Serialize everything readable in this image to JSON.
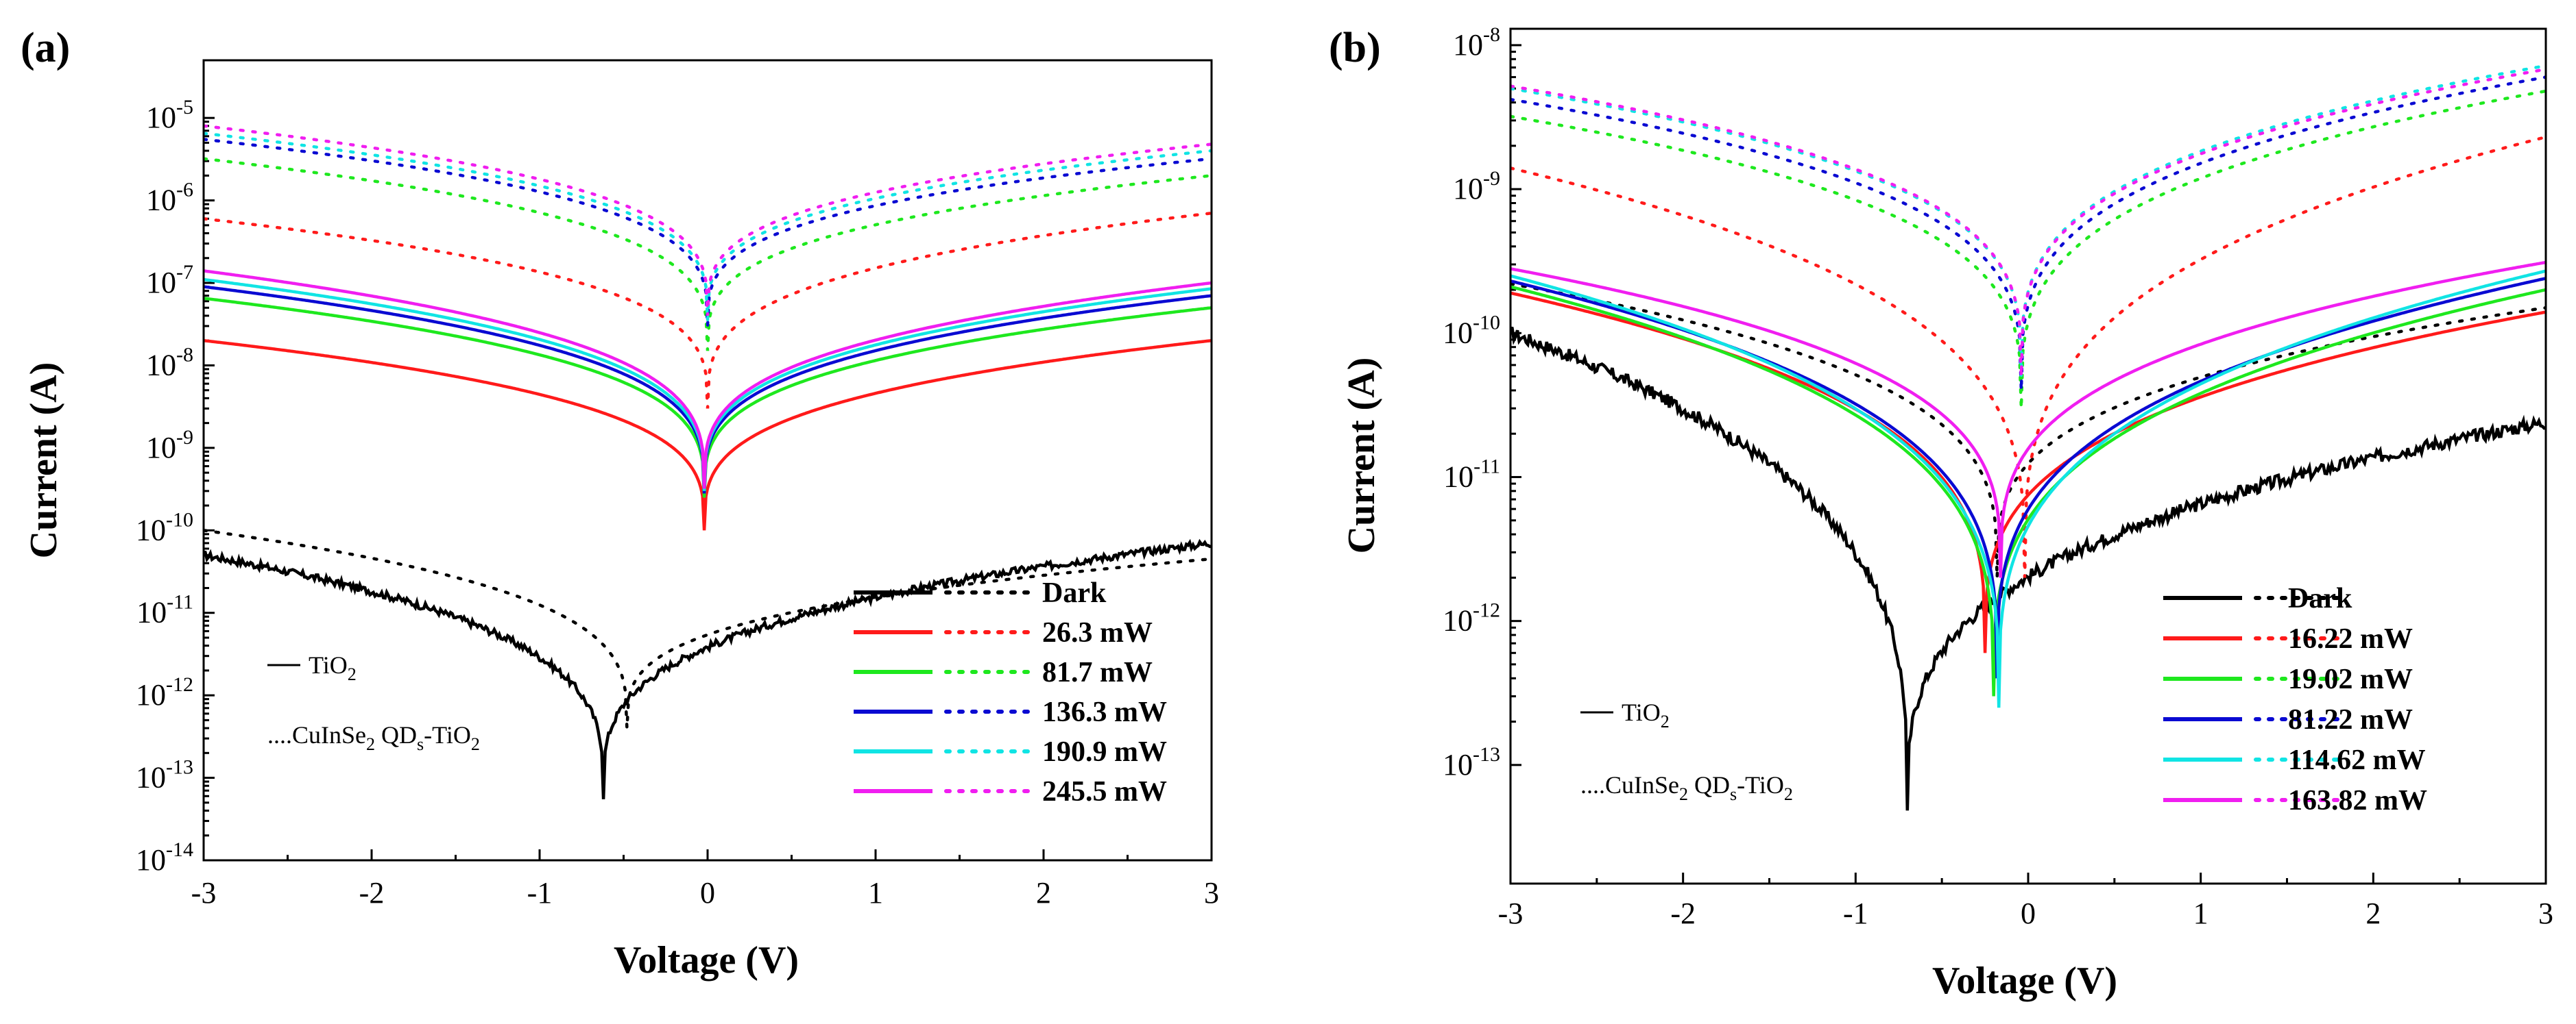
{
  "chart_data": [
    {
      "type": "line",
      "panel_label": "(a)",
      "xlabel": "Voltage (V)",
      "ylabel": "Current (A)",
      "xscale": "linear",
      "yscale": "log",
      "xlim": [
        -3,
        3
      ],
      "ylim": [
        1e-14,
        5e-05
      ],
      "x_ticks": [
        -3,
        -2,
        -1,
        0,
        1,
        2,
        3
      ],
      "x_tick_labels": [
        "-3",
        "-2",
        "-1",
        "0",
        "1",
        "2",
        "3"
      ],
      "y_tick_exponents": [
        -14,
        -13,
        -12,
        -11,
        -10,
        -9,
        -8,
        -7,
        -6,
        -5
      ],
      "legend_position": "bottom-right",
      "annotations": {
        "solid_label": "TiO",
        "solid_sub": "2",
        "dotted_prefix": "....CuInSe",
        "dotted_sub1": "2",
        "dotted_mid": " QD",
        "dotted_sub2": "s",
        "dotted_suffix": "-TiO",
        "dotted_sub3": "2"
      },
      "series": [
        {
          "name": "Dark",
          "color": "#000000",
          "solid": {
            "v3n": 5e-11,
            "v3p": 7e-11,
            "vmin": -0.62,
            "min": 6e-14
          },
          "dotted": {
            "v3n": 1e-10,
            "v3p": 4.5e-11,
            "vmin": -0.48,
            "min": 4e-13
          }
        },
        {
          "name": "26.3 mW",
          "color": "#ff1a1a",
          "solid": {
            "v3n": 2e-08,
            "v3p": 2e-08,
            "vmin": -0.02,
            "min": 1e-10
          },
          "dotted": {
            "v3n": 6e-07,
            "v3p": 7e-07,
            "vmin": 0,
            "min": 3e-09
          }
        },
        {
          "name": "81.7 mW",
          "color": "#1ee81e",
          "solid": {
            "v3n": 6.5e-08,
            "v3p": 5e-08,
            "vmin": -0.02,
            "min": 2.5e-10
          },
          "dotted": {
            "v3n": 3.2e-06,
            "v3p": 2e-06,
            "vmin": 0,
            "min": 1.5e-08
          }
        },
        {
          "name": "136.3 mW",
          "color": "#0a0ad2",
          "solid": {
            "v3n": 9e-08,
            "v3p": 7e-08,
            "vmin": -0.02,
            "min": 2.8e-10
          },
          "dotted": {
            "v3n": 5.5e-06,
            "v3p": 3.2e-06,
            "vmin": 0,
            "min": 3e-08
          }
        },
        {
          "name": "190.9 mW",
          "color": "#10e4e4",
          "solid": {
            "v3n": 1.1e-07,
            "v3p": 8.5e-08,
            "vmin": -0.02,
            "min": 3e-10
          },
          "dotted": {
            "v3n": 6.5e-06,
            "v3p": 4e-06,
            "vmin": 0,
            "min": 3.5e-08
          }
        },
        {
          "name": "245.5 mW",
          "color": "#f01ef0",
          "solid": {
            "v3n": 1.4e-07,
            "v3p": 1e-07,
            "vmin": -0.02,
            "min": 3.2e-10
          },
          "dotted": {
            "v3n": 8e-06,
            "v3p": 4.8e-06,
            "vmin": 0,
            "min": 4e-08
          }
        }
      ]
    },
    {
      "type": "line",
      "panel_label": "(b)",
      "xlabel": "Voltage (V)",
      "ylabel": "Current (A)",
      "xscale": "linear",
      "yscale": "log",
      "xlim": [
        -3,
        3
      ],
      "ylim": [
        1.5e-14,
        1.3e-08
      ],
      "x_ticks": [
        -3,
        -2,
        -1,
        0,
        1,
        2,
        3
      ],
      "x_tick_labels": [
        "-3",
        "-2",
        "-1",
        "0",
        "1",
        "2",
        "3"
      ],
      "y_tick_exponents": [
        -13,
        -12,
        -11,
        -10,
        -9,
        -8
      ],
      "legend_position": "bottom-right",
      "annotations": {
        "solid_label": "TiO",
        "solid_sub": "2",
        "dotted_prefix": "....CuInSe",
        "dotted_sub1": "2",
        "dotted_mid": " QD",
        "dotted_sub2": "s",
        "dotted_suffix": "-TiO",
        "dotted_sub3": "2"
      },
      "series": [
        {
          "name": "Dark",
          "color": "#000000",
          "solid": {
            "v3n": 1e-10,
            "v3p": 2.4e-11,
            "vmin": -0.7,
            "min": 4.5e-14
          },
          "dotted": {
            "v3n": 2.2e-10,
            "v3p": 1.5e-10,
            "vmin": -0.18,
            "min": 2e-12
          }
        },
        {
          "name": "16.22 mW",
          "color": "#ff1a1a",
          "solid": {
            "v3n": 1.9e-10,
            "v3p": 1.4e-10,
            "vmin": -0.25,
            "min": 6e-13
          },
          "dotted": {
            "v3n": 1.4e-09,
            "v3p": 2.3e-09,
            "vmin": -0.02,
            "min": 2e-12
          }
        },
        {
          "name": "19.02 mW",
          "color": "#1ee81e",
          "solid": {
            "v3n": 2.1e-10,
            "v3p": 2e-10,
            "vmin": -0.2,
            "min": 3e-13
          },
          "dotted": {
            "v3n": 3.2e-09,
            "v3p": 4.8e-09,
            "vmin": -0.04,
            "min": 3e-11
          }
        },
        {
          "name": "81.22 mW",
          "color": "#0a0ad2",
          "solid": {
            "v3n": 2.3e-10,
            "v3p": 2.4e-10,
            "vmin": -0.18,
            "min": 4e-13
          },
          "dotted": {
            "v3n": 4.2e-09,
            "v3p": 6e-09,
            "vmin": -0.04,
            "min": 4e-11
          }
        },
        {
          "name": "114.62 mW",
          "color": "#10e4e4",
          "solid": {
            "v3n": 2.5e-10,
            "v3p": 2.7e-10,
            "vmin": -0.17,
            "min": 2.5e-13
          },
          "dotted": {
            "v3n": 5e-09,
            "v3p": 7.2e-09,
            "vmin": -0.04,
            "min": 5e-11
          }
        },
        {
          "name": "163.82 mW",
          "color": "#f01ef0",
          "solid": {
            "v3n": 2.8e-10,
            "v3p": 3.1e-10,
            "vmin": -0.16,
            "min": 2e-12
          },
          "dotted": {
            "v3n": 5.2e-09,
            "v3p": 6.8e-09,
            "vmin": -0.04,
            "min": 5e-11
          }
        }
      ]
    }
  ]
}
